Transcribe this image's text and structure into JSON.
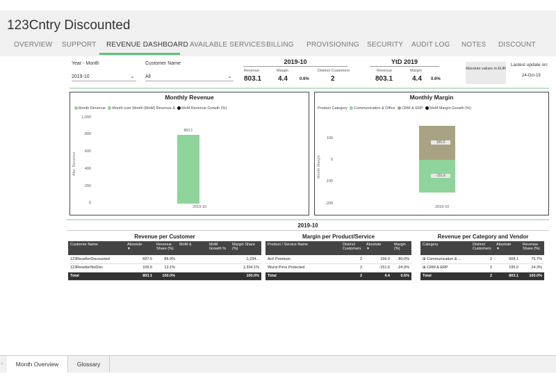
{
  "app_title": "123Cntry Discounted",
  "nav_tabs": [
    "OVERVIEW",
    "SUPPORT",
    "REVENUE DASHBOARD",
    "AVAILABLE SERVICES",
    "BILLING",
    "PROVISIONING",
    "SECURITY",
    "AUDIT LOG",
    "NOTES",
    "DISCOUNT"
  ],
  "active_tab": "REVENUE DASHBOARD",
  "filters": {
    "year_month_label": "Year - Month",
    "year_month_value": "2019-10",
    "customer_label": "Customer Name",
    "customer_value": "All"
  },
  "kpi_month": {
    "title": "2019-10",
    "revenue_label": "Revenue",
    "revenue_value": "803.1",
    "margin_label": "Margin",
    "margin_value": "4.4",
    "margin_pct": "0.6%",
    "customers_label": "Distinct Customers",
    "customers_value": "2"
  },
  "kpi_ytd": {
    "title": "YtD 2019",
    "revenue_label": "Revenue",
    "revenue_value": "803.1",
    "margin_label": "Margin",
    "margin_value": "4.4",
    "margin_pct": "0.6%"
  },
  "absolute_note": "Absolute values in EUR",
  "update_label": "Lastest update on:",
  "update_value": "24-Oct-19",
  "monthly_revenue": {
    "title": "Monthly Revenue",
    "legend": [
      "Month Revenue",
      "Month over Month (MoM) Revenue Δ",
      "MoM Revenue Growth (%)"
    ],
    "y_title": "Abs. Revenue",
    "y_ticks": [
      "1,000",
      "800",
      "600",
      "400",
      "200",
      "0"
    ],
    "bar_label": "803.1",
    "x_cat": "2019-10"
  },
  "monthly_margin": {
    "title": "Monthly Margin",
    "legend": [
      "Product Category",
      "Communication & Office",
      "CRM & ERP",
      "MoM Margin Growth (%)"
    ],
    "y_title": "Month Margin",
    "y_ticks": [
      "100",
      "0",
      "-100",
      "-200"
    ],
    "pos_label": "156.0",
    "neg_label": "-151.6",
    "x_cat": "2019-10"
  },
  "chart_data": [
    {
      "type": "bar",
      "title": "Monthly Revenue",
      "categories": [
        "2019-10"
      ],
      "series": [
        {
          "name": "Month Revenue",
          "values": [
            803.1
          ]
        }
      ],
      "ylabel": "Abs. Revenue",
      "ylim": [
        0,
        1000
      ]
    },
    {
      "type": "bar",
      "title": "Monthly Margin",
      "categories": [
        "2019-10"
      ],
      "series": [
        {
          "name": "Communication & Office",
          "values": [
            -151.6
          ]
        },
        {
          "name": "CRM & ERP",
          "values": [
            156.0
          ]
        }
      ],
      "ylabel": "Month Margin",
      "ylim": [
        -200,
        150
      ]
    }
  ],
  "section_title": "2019-10",
  "rev_customer": {
    "title": "Revenue per Customer",
    "headers": [
      "Customer Name",
      "Absolute",
      "Revenue Share (%)",
      "MoM Δ",
      "MoM Growth %",
      "Margin Share (%)"
    ],
    "rows": [
      [
        "123ResellerDiscounted",
        "697.5",
        "86.9%",
        "",
        "",
        "-1,234..."
      ],
      [
        "123ResellerNoDisc",
        "105.6",
        "13.1%",
        "",
        "",
        "1,334.1%"
      ]
    ],
    "total": [
      "Total",
      "803.1",
      "100.0%",
      "",
      "",
      "100.0%"
    ]
  },
  "margin_product": {
    "title": "Margin per Product/Service",
    "headers": [
      "Product / Service Name",
      "Distinct Customers",
      "Absolute",
      "Margin (%)"
    ],
    "rows": [
      [
        "Act! Premium",
        "2",
        "156.0",
        "80.0%"
      ],
      [
        "Wurst Price Protected",
        "2",
        "-151.6",
        "-24.9%"
      ]
    ],
    "total": [
      "Total",
      "2",
      "4.4",
      "0.6%"
    ]
  },
  "rev_category": {
    "title": "Revenue per Category and Vendor",
    "headers": [
      "Category",
      "Distinct Customers",
      "Absolute",
      "Revenue Share (%)"
    ],
    "rows": [
      [
        "Communication & ...",
        "2",
        "608.1",
        "75.7%"
      ],
      [
        "CRM & ERP",
        "2",
        "195.0",
        "24.3%"
      ]
    ],
    "total": [
      "Total",
      "2",
      "803.1",
      "100.0%"
    ]
  },
  "bottom_tabs": [
    "Month Overview",
    "Glossary"
  ],
  "colors": {
    "accent": "#5cc27a",
    "bar_green": "#8fd49a",
    "bar_olive": "#a9a383",
    "header_dark": "#444444"
  }
}
